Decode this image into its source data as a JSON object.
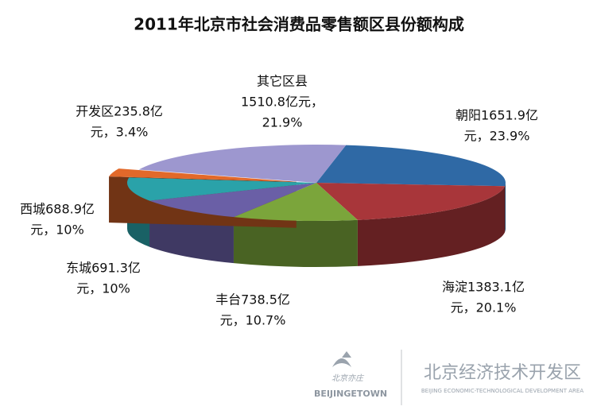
{
  "chart_data": {
    "type": "pie3d",
    "title": "2011年北京市社会消费品零售额区县份额构成",
    "values": [
      23.9,
      20.1,
      10.7,
      10,
      10,
      3.4,
      21.9
    ],
    "value_labels": [
      [
        "朝阳1651.9亿",
        "元，23.9%"
      ],
      [
        "海淀1383.1亿",
        "元，20.1%"
      ],
      [
        "丰台738.5亿",
        "元，10.7%"
      ],
      [
        "东城691.3亿",
        "元，10%"
      ],
      [
        "西城688.9亿",
        "元，10%"
      ],
      [
        "开发区235.8亿",
        "元，3.4%"
      ],
      [
        "其它区县",
        "1510.8亿元，",
        "21.9%"
      ]
    ],
    "colors": [
      "#2f69a5",
      "#a8363a",
      "#7ba53b",
      "#6a5fa6",
      "#2aa2a9",
      "#e2692a",
      "#9d97cf"
    ]
  },
  "logo": {
    "mark": "北京亦庄",
    "mark_en": "BEIJINGETOWN",
    "name": "北京经济技术开发区",
    "name_en": "BEIJING ECONOMIC-TECHNOLOGICAL DEVELOPMENT AREA"
  }
}
